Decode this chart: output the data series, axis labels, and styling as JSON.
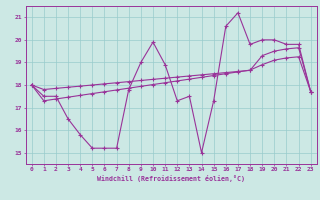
{
  "bg_color": "#cce8e4",
  "grid_color": "#99cccc",
  "line_color": "#993399",
  "xlim": [
    -0.5,
    23.5
  ],
  "ylim": [
    14.5,
    21.5
  ],
  "xticks": [
    0,
    1,
    2,
    3,
    4,
    5,
    6,
    7,
    8,
    9,
    10,
    11,
    12,
    13,
    14,
    15,
    16,
    17,
    18,
    19,
    20,
    21,
    22,
    23
  ],
  "yticks": [
    15,
    16,
    17,
    18,
    19,
    20,
    21
  ],
  "xlabel": "Windchill (Refroidissement éolien,°C)",
  "hours": [
    0,
    1,
    2,
    3,
    4,
    5,
    6,
    7,
    8,
    9,
    10,
    11,
    12,
    13,
    14,
    15,
    16,
    17,
    18,
    19,
    20,
    21,
    22,
    23
  ],
  "line_main": [
    18.0,
    17.5,
    17.5,
    16.5,
    15.8,
    15.2,
    15.2,
    15.2,
    17.8,
    19.0,
    19.9,
    18.9,
    17.3,
    17.5,
    15.0,
    17.3,
    20.6,
    21.2,
    19.8,
    20.0,
    20.0,
    19.8,
    19.8,
    17.7
  ],
  "line_upper": [
    18.0,
    17.8,
    17.85,
    17.9,
    17.95,
    18.0,
    18.05,
    18.1,
    18.15,
    18.2,
    18.25,
    18.3,
    18.35,
    18.4,
    18.45,
    18.5,
    18.55,
    18.6,
    18.65,
    19.3,
    19.5,
    19.6,
    19.65,
    17.7
  ],
  "line_lower": [
    18.0,
    17.3,
    17.38,
    17.46,
    17.54,
    17.62,
    17.7,
    17.78,
    17.86,
    17.94,
    18.02,
    18.1,
    18.18,
    18.26,
    18.34,
    18.42,
    18.5,
    18.58,
    18.66,
    18.9,
    19.1,
    19.2,
    19.25,
    17.7
  ]
}
